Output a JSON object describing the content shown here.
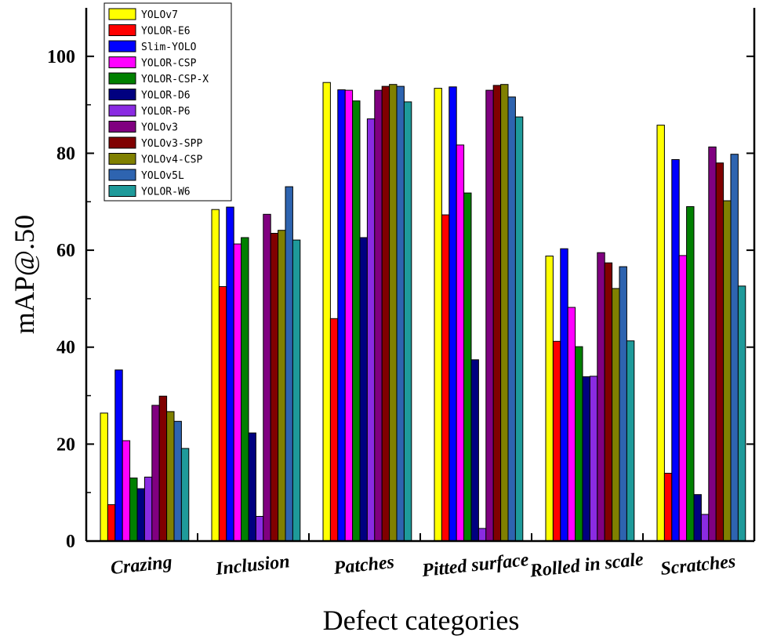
{
  "chart_data": {
    "type": "bar",
    "title": "",
    "xlabel": "Defect categories",
    "ylabel": "mAP@.50",
    "ylim": [
      0,
      110
    ],
    "yticks": [
      0,
      20,
      40,
      60,
      80,
      100
    ],
    "legend_position": "top-left",
    "categories": [
      "Crazing",
      "Inclusion",
      "Patches",
      "Pitted surface",
      "Rolled in scale",
      "Scratches"
    ],
    "series": [
      {
        "name": "YOLOv7",
        "color": "#ffff00",
        "values": [
          26.4,
          68.4,
          94.6,
          93.4,
          58.8,
          85.8
        ]
      },
      {
        "name": "YOLOR-E6",
        "color": "#ff0000",
        "values": [
          7.5,
          52.5,
          45.9,
          67.3,
          41.2,
          14.0
        ]
      },
      {
        "name": "Slim-YOLO",
        "color": "#0000ff",
        "values": [
          35.3,
          68.9,
          93.1,
          93.7,
          60.3,
          78.7
        ]
      },
      {
        "name": "YOLOR-CSP",
        "color": "#ff00ff",
        "values": [
          20.7,
          61.3,
          93.0,
          81.7,
          48.2,
          58.9
        ]
      },
      {
        "name": "YOLOR-CSP-X",
        "color": "#008000",
        "values": [
          13.0,
          62.6,
          90.8,
          71.8,
          40.1,
          69.0
        ]
      },
      {
        "name": "YOLOR-D6",
        "color": "#000080",
        "values": [
          10.8,
          22.3,
          62.6,
          37.4,
          33.9,
          9.6
        ]
      },
      {
        "name": "YOLOR-P6",
        "color": "#8a2be2",
        "values": [
          13.2,
          5.1,
          87.1,
          2.6,
          34.0,
          5.5
        ]
      },
      {
        "name": "YOLOv3",
        "color": "#800080",
        "values": [
          28.0,
          67.4,
          93.0,
          93.0,
          59.5,
          81.3
        ]
      },
      {
        "name": "YOLOv3-SPP",
        "color": "#800000",
        "values": [
          29.9,
          63.5,
          93.8,
          94.0,
          57.4,
          78.0
        ]
      },
      {
        "name": "YOLOv4-CSP",
        "color": "#808000",
        "values": [
          26.7,
          64.1,
          94.2,
          94.2,
          52.1,
          70.2
        ]
      },
      {
        "name": "YOLOv5L",
        "color": "#2e64b0",
        "values": [
          24.7,
          73.1,
          93.8,
          91.6,
          56.6,
          79.8
        ]
      },
      {
        "name": "YOLOR-W6",
        "color": "#1e9a9a",
        "values": [
          19.1,
          62.1,
          90.6,
          87.5,
          41.3,
          52.6
        ]
      }
    ]
  }
}
